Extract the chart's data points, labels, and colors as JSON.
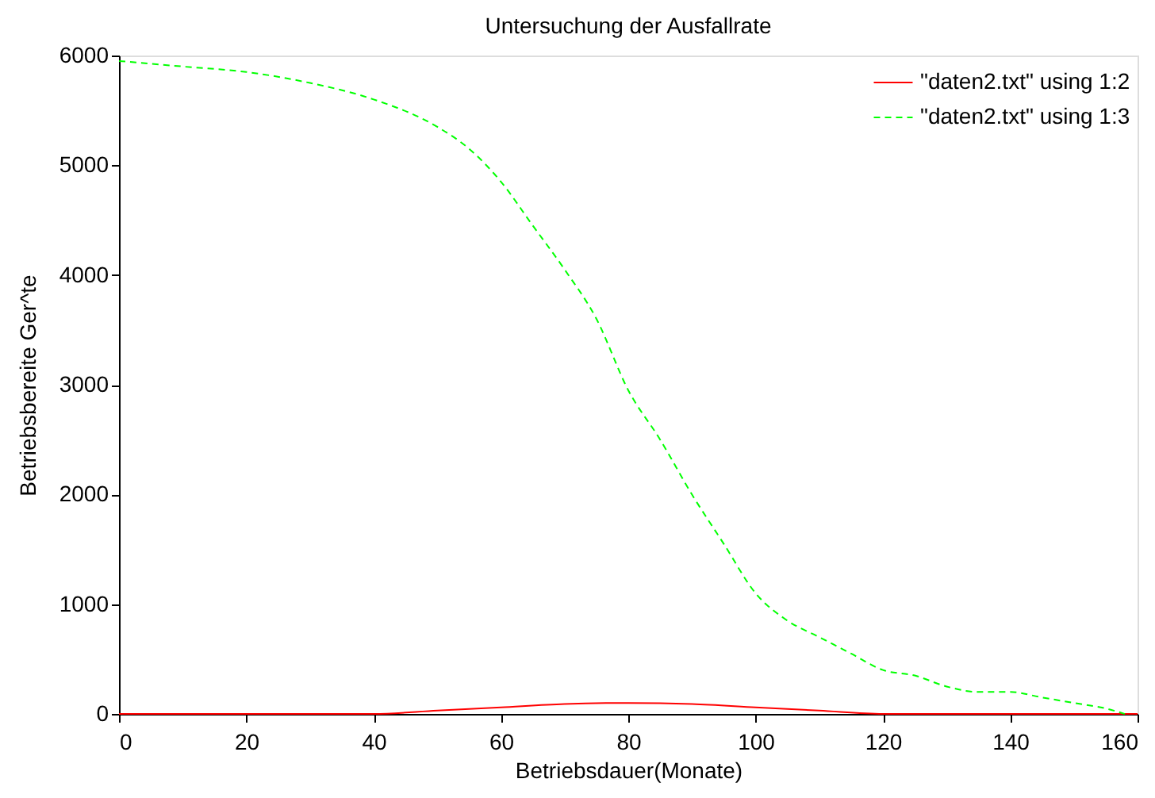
{
  "chart_data": {
    "type": "line",
    "title": "Untersuchung der Ausfallrate",
    "xlabel": "Betriebsdauer(Monate)",
    "ylabel": "Betriebsbereite Ger^te",
    "xlim": [
      0,
      160
    ],
    "ylim": [
      0,
      6000
    ],
    "xticks": [
      0,
      20,
      40,
      60,
      80,
      100,
      120,
      140,
      160
    ],
    "yticks": [
      0,
      1000,
      2000,
      3000,
      4000,
      5000,
      6000
    ],
    "grid": false,
    "legend": "top right",
    "marker": "none",
    "series": [
      {
        "name": "\"daten2.txt\" using 1:2",
        "color": "#ff0000",
        "line_style": "solid",
        "x": [
          0,
          10,
          20,
          30,
          40,
          50,
          60,
          70,
          80,
          90,
          100,
          110,
          120,
          130,
          140,
          150,
          160
        ],
        "values": [
          0,
          0,
          0,
          0,
          0,
          30,
          60,
          90,
          100,
          90,
          60,
          30,
          0,
          0,
          0,
          0,
          0
        ]
      },
      {
        "name": "\"daten2.txt\" using 1:3",
        "color": "#00ff00",
        "line_style": "dashed",
        "x": [
          0,
          10,
          20,
          30,
          40,
          50,
          55,
          60,
          65,
          70,
          75,
          80,
          85,
          90,
          95,
          100,
          105,
          110,
          115,
          120,
          125,
          130,
          135,
          140,
          145,
          150,
          155,
          158
        ],
        "values": [
          5950,
          5900,
          5850,
          5750,
          5600,
          5350,
          5150,
          4850,
          4450,
          4050,
          3600,
          2950,
          2500,
          2000,
          1550,
          1100,
          850,
          700,
          550,
          400,
          350,
          250,
          200,
          200,
          150,
          100,
          50,
          0
        ]
      }
    ]
  }
}
